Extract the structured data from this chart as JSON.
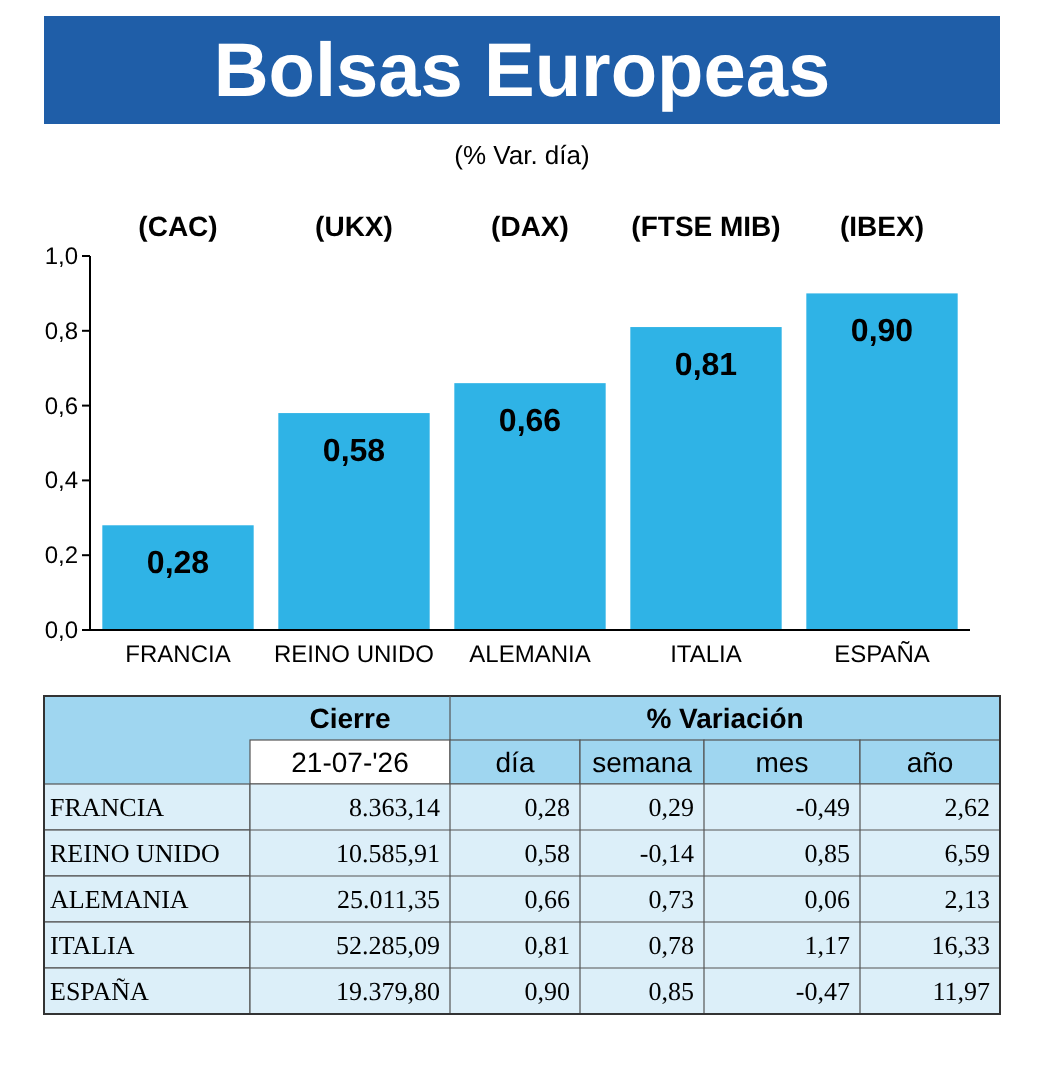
{
  "chart_data": [
    {
      "type": "bar",
      "title": "Bolsas Europeas",
      "subtitle": "(% Var. día)",
      "categories": [
        "FRANCIA",
        "REINO UNIDO",
        "ALEMANIA",
        "ITALIA",
        "ESPAÑA"
      ],
      "values": [
        0.28,
        0.58,
        0.66,
        0.81,
        0.9
      ],
      "color": "#2fb3e6",
      "value_labels": [
        "0,28",
        "0,58",
        "0,66",
        "0,81",
        "0,90"
      ],
      "ylim": [
        0,
        1
      ],
      "yticks": [
        {
          "value": 0,
          "label": "0,0"
        },
        {
          "value": 0.2,
          "label": "0,2"
        },
        {
          "value": 0.4,
          "label": "0,4"
        },
        {
          "value": 0.6,
          "label": "0,6"
        },
        {
          "value": 0.8,
          "label": "0,8"
        },
        {
          "value": 1,
          "label": "1,0"
        }
      ],
      "grid": false,
      "annotations": [
        "(CAC)",
        "(UKX)",
        "(DAX)",
        "(FTSE MIB)",
        "(IBEX)"
      ]
    },
    {
      "type": "other",
      "categories": [
        "21-07-'26",
        "día",
        "semana",
        "mes",
        "año"
      ],
      "y_categories": [
        "FRANCIA",
        "REINO UNIDO",
        "ALEMANIA",
        "ITALIA",
        "ESPAÑA"
      ],
      "color": "#dceff9",
      "annotations": [
        "Cierre",
        "% Variación"
      ],
      "cell_labels": [
        [
          "8.363,14",
          "0,28",
          "0,29",
          "-0,49",
          "2,62"
        ],
        [
          "10.585,91",
          "0,58",
          "-0,14",
          "0,85",
          "6,59"
        ],
        [
          "25.011,35",
          "0,66",
          "0,73",
          "0,06",
          "2,13"
        ],
        [
          "52.285,09",
          "0,81",
          "0,78",
          "1,17",
          "16,33"
        ],
        [
          "19.379,80",
          "0,90",
          "0,85",
          "-0,47",
          "11,97"
        ]
      ]
    }
  ]
}
